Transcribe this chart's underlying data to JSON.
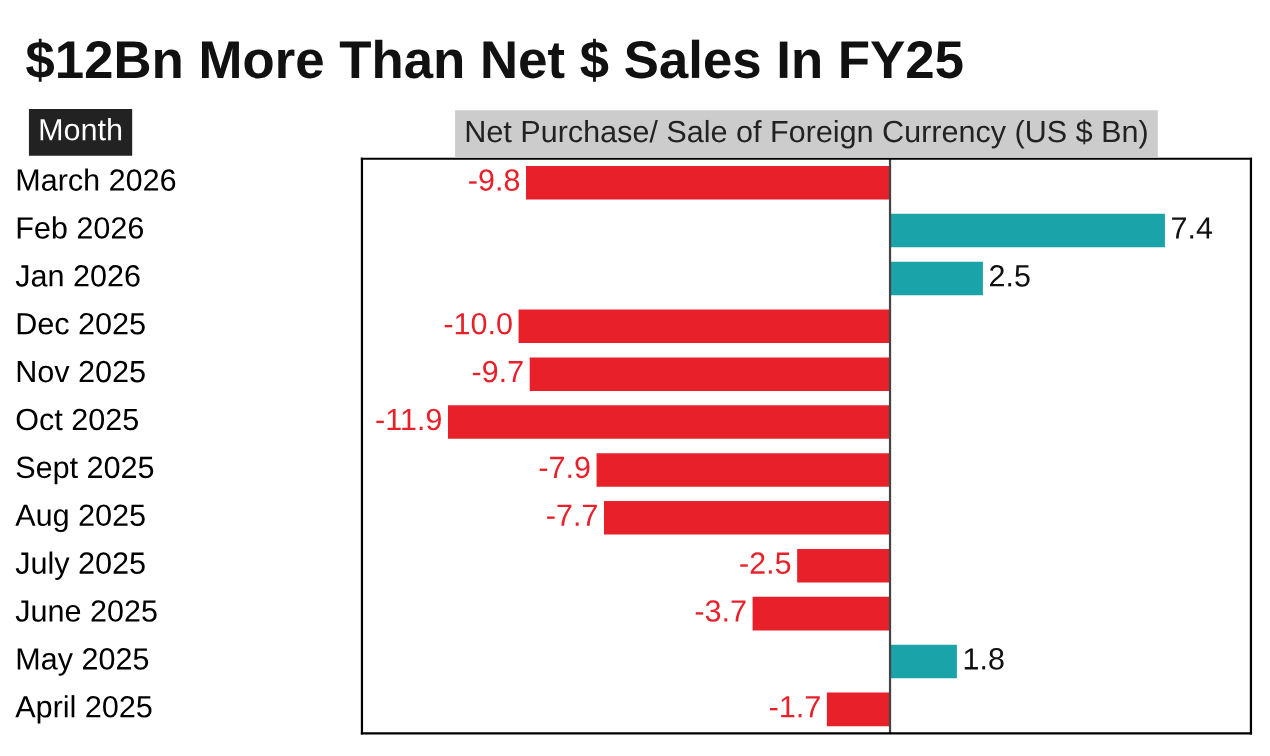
{
  "chart_data": {
    "type": "bar",
    "orientation": "horizontal",
    "title": "$12Bn More Than Net $ Sales In FY25",
    "ylabel": "Month",
    "xlabel": "Net Purchase/ Sale of Foreign Currency (US $ Bn)",
    "categories": [
      "March 2026",
      "Feb 2026",
      "Jan 2026",
      "Dec 2025",
      "Nov 2025",
      "Oct 2025",
      "Sept 2025",
      "Aug 2025",
      "July 2025",
      "June 2025",
      "May 2025",
      "April 2025"
    ],
    "values": [
      -9.8,
      7.4,
      2.5,
      -10.0,
      -9.7,
      -11.9,
      -7.9,
      -7.7,
      -2.5,
      -3.7,
      1.8,
      -1.7
    ],
    "value_labels": [
      "-9.8",
      "7.4",
      "2.5",
      "-10.0",
      "-9.7",
      "-11.9",
      "-7.9",
      "-7.7",
      "-2.5",
      "-3.7",
      "1.8",
      "-1.7"
    ],
    "colors": [
      "#e8202a",
      "#1aa3a8",
      "#1aa3a8",
      "#e8202a",
      "#e8202a",
      "#e8202a",
      "#e8202a",
      "#e8202a",
      "#e8202a",
      "#e8202a",
      "#1aa3a8",
      "#e8202a"
    ],
    "grid": false,
    "legend": false
  }
}
